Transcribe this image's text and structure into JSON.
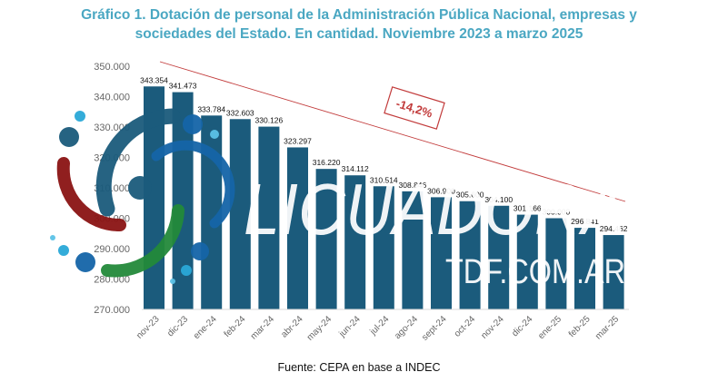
{
  "title_line1": "Gráfico 1. Dotación de personal de la Administración Pública Nacional, empresas y",
  "title_line2": "sociedades del Estado. En cantidad. Noviembre 2023 a marzo 2025",
  "source": "Fuente: CEPA en base a INDEC",
  "watermark": {
    "main": "LICUADORA",
    "sub": "TDF.COM.AR"
  },
  "colors": {
    "bar": "#1b5b7c",
    "title": "#4aa7c2",
    "trend": "#c23b3b",
    "axis_text": "#666666"
  },
  "chart_data": {
    "type": "bar",
    "title": "Gráfico 1. Dotación de personal de la Administración Pública Nacional, empresas y sociedades del Estado. En cantidad. Noviembre 2023 a marzo 2025",
    "categories": [
      "nov-23",
      "dic-23",
      "ene-24",
      "feb-24",
      "mar-24",
      "abr-24",
      "may-24",
      "jun-24",
      "jul-24",
      "ago-24",
      "sept-24",
      "oct-24",
      "nov-24",
      "dic-24",
      "ene-25",
      "feb-25",
      "mar-25"
    ],
    "values": [
      343354,
      341473,
      333784,
      332603,
      330126,
      323297,
      316220,
      314112,
      310514,
      308846,
      306900,
      305600,
      304100,
      301166,
      300000,
      296841,
      294462
    ],
    "value_labels": [
      "343.354",
      "341.473",
      "333.784",
      "332.603",
      "330.126",
      "323.297",
      "316.220",
      "314.112",
      "310.514",
      "308.846",
      "306.900",
      "305.600",
      "304.100",
      "301.166",
      "300.000",
      "296.841",
      "294.462"
    ],
    "yticks": [
      "270.000",
      "280.000",
      "290.000",
      "300.000",
      "310.000",
      "320.000",
      "330.000",
      "340.000",
      "350.000"
    ],
    "ylim": [
      270000,
      350000
    ],
    "annotation": "-14,2%",
    "trend_line": true,
    "grid": false
  }
}
